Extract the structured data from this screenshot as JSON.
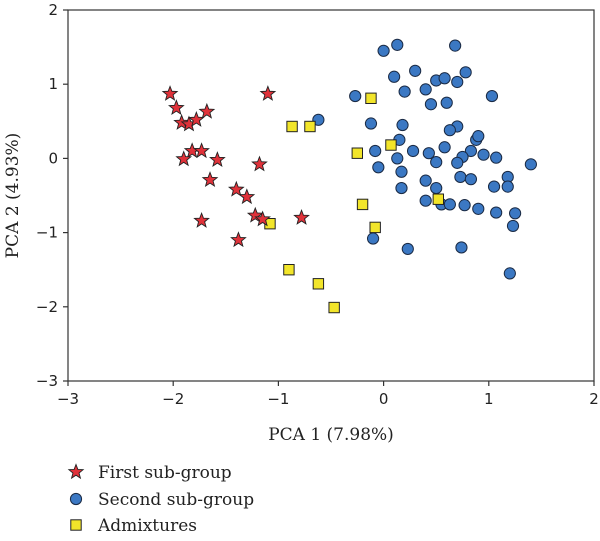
{
  "chart_data": {
    "type": "scatter",
    "xlabel": "PCA 1 (7.98%)",
    "ylabel": "PCA 2 (4.93%)",
    "xlim": [
      -3,
      2
    ],
    "ylim": [
      -3,
      2
    ],
    "xticks": [
      -3,
      -2,
      -1,
      0,
      1,
      2
    ],
    "yticks": [
      -3,
      -2,
      -1,
      0,
      1,
      2
    ],
    "xtick_labels": [
      "−3",
      "−2",
      "−1",
      "0",
      "1",
      "2"
    ],
    "ytick_labels": [
      "−3",
      "−2",
      "−1",
      "0",
      "1",
      "2"
    ],
    "grid": false,
    "legend_position": "bottom-left",
    "series": [
      {
        "name": "First sub-group",
        "marker": "star",
        "color": "#e0323a",
        "points": [
          [
            -2.03,
            0.87
          ],
          [
            -1.97,
            0.68
          ],
          [
            -1.92,
            0.48
          ],
          [
            -1.85,
            0.46
          ],
          [
            -1.78,
            0.52
          ],
          [
            -1.68,
            0.63
          ],
          [
            -1.1,
            0.87
          ],
          [
            -1.82,
            0.1
          ],
          [
            -1.73,
            0.1
          ],
          [
            -1.9,
            -0.01
          ],
          [
            -1.58,
            -0.02
          ],
          [
            -1.18,
            -0.08
          ],
          [
            -1.65,
            -0.29
          ],
          [
            -1.4,
            -0.42
          ],
          [
            -1.3,
            -0.52
          ],
          [
            -1.22,
            -0.77
          ],
          [
            -1.15,
            -0.82
          ],
          [
            -1.73,
            -0.84
          ],
          [
            -0.78,
            -0.8
          ],
          [
            -1.38,
            -1.1
          ]
        ]
      },
      {
        "name": "Second sub-group",
        "marker": "circle",
        "color": "#3b78c3",
        "points": [
          [
            0.0,
            1.45
          ],
          [
            0.13,
            1.53
          ],
          [
            0.68,
            1.52
          ],
          [
            0.1,
            1.1
          ],
          [
            0.3,
            1.18
          ],
          [
            0.5,
            1.05
          ],
          [
            0.58,
            1.08
          ],
          [
            0.7,
            1.03
          ],
          [
            0.78,
            1.16
          ],
          [
            0.4,
            0.93
          ],
          [
            0.2,
            0.9
          ],
          [
            -0.27,
            0.84
          ],
          [
            0.45,
            0.73
          ],
          [
            0.6,
            0.75
          ],
          [
            1.03,
            0.84
          ],
          [
            -0.62,
            0.52
          ],
          [
            -0.12,
            0.47
          ],
          [
            0.18,
            0.45
          ],
          [
            0.7,
            0.43
          ],
          [
            0.63,
            0.38
          ],
          [
            0.15,
            0.25
          ],
          [
            0.28,
            0.1
          ],
          [
            0.43,
            0.07
          ],
          [
            0.58,
            0.15
          ],
          [
            0.88,
            0.25
          ],
          [
            0.9,
            0.3
          ],
          [
            0.83,
            0.1
          ],
          [
            0.75,
            0.02
          ],
          [
            0.95,
            0.05
          ],
          [
            1.07,
            0.01
          ],
          [
            -0.08,
            0.1
          ],
          [
            -0.05,
            -0.12
          ],
          [
            0.13,
            0.0
          ],
          [
            0.17,
            -0.18
          ],
          [
            0.5,
            -0.05
          ],
          [
            0.7,
            -0.06
          ],
          [
            1.4,
            -0.08
          ],
          [
            0.4,
            -0.3
          ],
          [
            0.5,
            -0.4
          ],
          [
            0.73,
            -0.25
          ],
          [
            0.83,
            -0.28
          ],
          [
            1.05,
            -0.38
          ],
          [
            1.18,
            -0.25
          ],
          [
            1.18,
            -0.38
          ],
          [
            0.17,
            -0.4
          ],
          [
            0.4,
            -0.57
          ],
          [
            0.55,
            -0.62
          ],
          [
            0.63,
            -0.62
          ],
          [
            0.77,
            -0.63
          ],
          [
            0.9,
            -0.68
          ],
          [
            1.07,
            -0.73
          ],
          [
            1.25,
            -0.74
          ],
          [
            1.23,
            -0.91
          ],
          [
            -0.1,
            -1.08
          ],
          [
            0.23,
            -1.22
          ],
          [
            0.74,
            -1.2
          ],
          [
            1.2,
            -1.55
          ]
        ]
      },
      {
        "name": "Admixtures",
        "marker": "square",
        "color": "#f2e52a",
        "points": [
          [
            -0.12,
            0.81
          ],
          [
            -0.87,
            0.43
          ],
          [
            -0.7,
            0.43
          ],
          [
            -0.25,
            0.07
          ],
          [
            0.07,
            0.18
          ],
          [
            0.52,
            -0.55
          ],
          [
            -0.2,
            -0.62
          ],
          [
            -0.08,
            -0.93
          ],
          [
            -1.08,
            -0.88
          ],
          [
            -0.9,
            -1.5
          ],
          [
            -0.62,
            -1.69
          ],
          [
            -0.47,
            -2.01
          ]
        ]
      }
    ]
  }
}
